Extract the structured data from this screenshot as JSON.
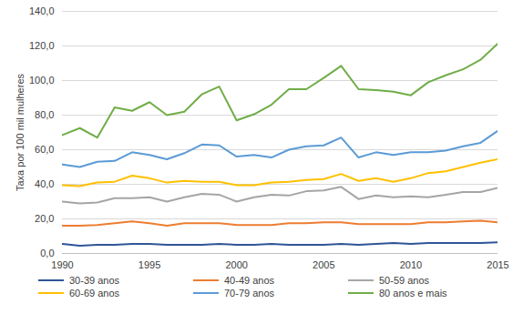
{
  "chart_data": {
    "type": "line",
    "y_label": "Taxa por 100 mil mulheres",
    "x": [
      1990,
      1991,
      1992,
      1993,
      1994,
      1995,
      1996,
      1997,
      1998,
      1999,
      2000,
      2001,
      2002,
      2003,
      2004,
      2005,
      2006,
      2007,
      2008,
      2009,
      2010,
      2011,
      2012,
      2013,
      2014,
      2015
    ],
    "series": [
      {
        "name": "30-39 anos",
        "color": "#2f5597",
        "values": [
          5.5,
          4.5,
          5,
          5,
          5.5,
          5.5,
          5,
          5,
          5,
          5.5,
          5,
          5,
          5.5,
          5,
          5,
          5,
          5.5,
          5,
          5.5,
          6,
          5.5,
          6,
          6,
          6,
          6,
          6.5
        ]
      },
      {
        "name": "40-49 anos",
        "color": "#ed7d31",
        "values": [
          16,
          16,
          16.5,
          17.5,
          18.5,
          17.5,
          16,
          17.5,
          17.5,
          17.5,
          16.5,
          16.5,
          16.5,
          17.5,
          17.5,
          18,
          18,
          17,
          17,
          17,
          17,
          18,
          18,
          18.5,
          19,
          18
        ]
      },
      {
        "name": "50-59 anos",
        "color": "#a5a5a5",
        "values": [
          30,
          29,
          29.5,
          32,
          32,
          32.5,
          30,
          32.5,
          34.5,
          34,
          30,
          32.5,
          34,
          33.5,
          36,
          36.5,
          38.5,
          31.5,
          33.5,
          32.5,
          33,
          32.5,
          34,
          35.5,
          35.5,
          38
        ]
      },
      {
        "name": "60-69 anos",
        "color": "#ffc000",
        "values": [
          39.5,
          39,
          41,
          41.5,
          45,
          43.5,
          41,
          42,
          41.5,
          41.5,
          39.5,
          39.5,
          41,
          41.5,
          42.5,
          43,
          46,
          42,
          43.5,
          41.5,
          43.5,
          46.5,
          47.5,
          50,
          52.5,
          54.5
        ]
      },
      {
        "name": "70-79 anos",
        "color": "#5b9bd5",
        "values": [
          51.5,
          50,
          53,
          53.5,
          58.5,
          57,
          54.5,
          58,
          63,
          62.5,
          56,
          57,
          55.5,
          60,
          62,
          62.5,
          67,
          55.5,
          58.5,
          57,
          58.5,
          58.5,
          59.5,
          62,
          64,
          71
        ]
      },
      {
        "name": "80 anos e mais",
        "color": "#70ad47",
        "values": [
          68.5,
          72.5,
          67,
          84.5,
          82.5,
          87.5,
          80,
          82,
          92,
          96.5,
          77,
          80.5,
          86,
          95,
          95,
          101.5,
          108.5,
          95,
          94.5,
          93.5,
          91.5,
          99,
          103,
          106.5,
          112,
          121.5
        ]
      }
    ],
    "xlim": [
      1990,
      2015
    ],
    "xticks": [
      1990,
      1995,
      2000,
      2005,
      2010,
      2015
    ],
    "ylim": [
      0,
      140
    ],
    "yticks": [
      {
        "value": 0,
        "label": "0,0"
      },
      {
        "value": 20,
        "label": "20,0"
      },
      {
        "value": 40,
        "label": "40,0"
      },
      {
        "value": 60,
        "label": "60,0"
      },
      {
        "value": 80,
        "label": "80,0"
      },
      {
        "value": 100,
        "label": "100,0"
      },
      {
        "value": 120,
        "label": "120,0"
      },
      {
        "value": 140,
        "label": "140,0"
      }
    ],
    "grid": true,
    "legend": "bottom"
  }
}
